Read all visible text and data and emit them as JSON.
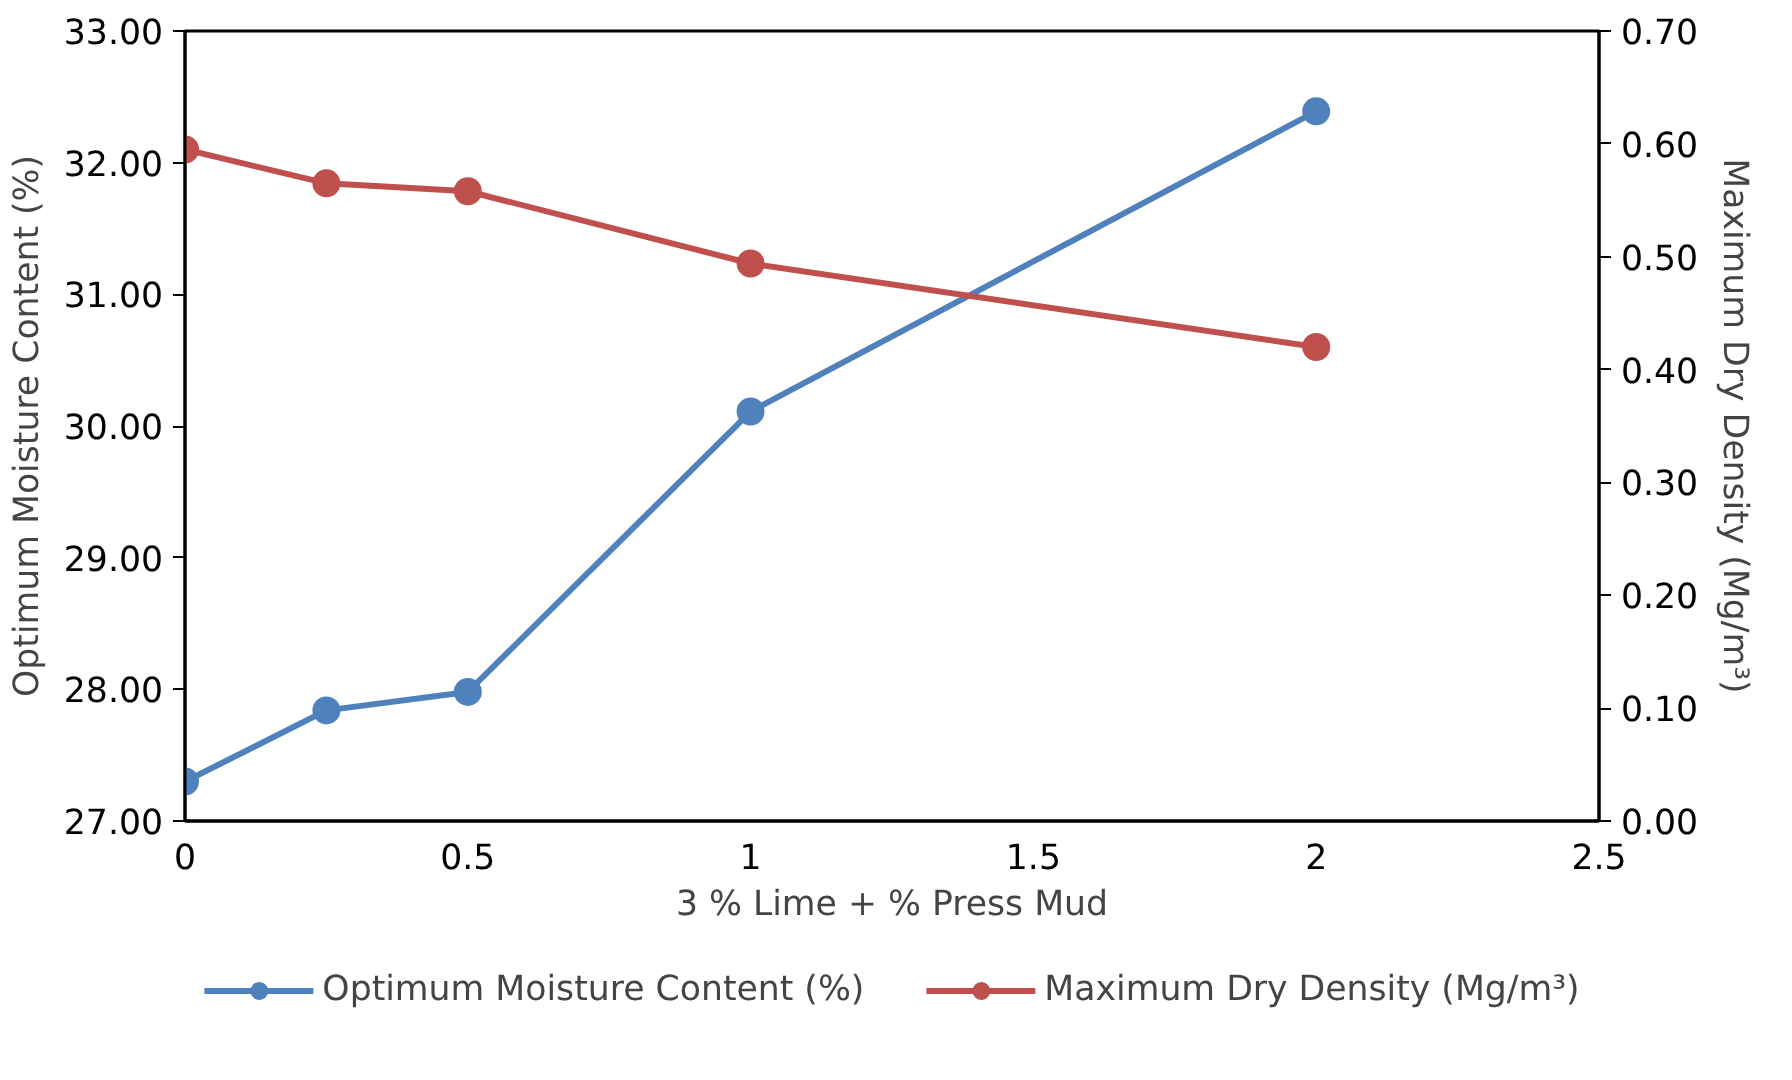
{
  "chart_data": {
    "type": "line",
    "xlabel": "3 % Lime + % Press Mud",
    "ylabel": "Optimum Moisture Content (%)",
    "y2label": "Maximum Dry Density (Mg/m³)",
    "x": [
      0,
      0.25,
      0.5,
      1,
      2
    ],
    "series": [
      {
        "name": "Optimum Moisture Content (%)",
        "color": "#4f81bd",
        "values": [
          27.3,
          27.84,
          27.98,
          30.11,
          32.39
        ]
      },
      {
        "name": "Maximum Dry Density (Mg/m³)",
        "color": "#c0504d",
        "values": [
          0.595,
          0.565,
          0.558,
          0.494,
          0.42
        ],
        "axis": "y2"
      }
    ],
    "xlim": [
      0,
      2.5
    ],
    "xticks": [
      0,
      0.5,
      1,
      1.5,
      2,
      2.5
    ],
    "ylim": [
      27,
      33
    ],
    "yticks": [
      {
        "value": 27,
        "label": "27.00"
      },
      {
        "value": 28,
        "label": "28.00"
      },
      {
        "value": 29,
        "label": "29.00"
      },
      {
        "value": 30,
        "label": "30.00"
      },
      {
        "value": 31,
        "label": "31.00"
      },
      {
        "value": 32,
        "label": "32.00"
      },
      {
        "value": 33,
        "label": "33.00"
      }
    ],
    "y2lim": [
      0,
      0.7
    ],
    "y2ticks": [
      {
        "value": 0,
        "label": "0.00"
      },
      {
        "value": 0.1,
        "label": "0.10"
      },
      {
        "value": 0.2,
        "label": "0.20"
      },
      {
        "value": 0.3,
        "label": "0.30"
      },
      {
        "value": 0.4,
        "label": "0.40"
      },
      {
        "value": 0.5,
        "label": "0.50"
      },
      {
        "value": 0.6,
        "label": "0.60"
      },
      {
        "value": 0.7,
        "label": "0.70"
      }
    ],
    "grid": false,
    "legend": "bottom",
    "marker": "circle",
    "line_style": "solid"
  }
}
